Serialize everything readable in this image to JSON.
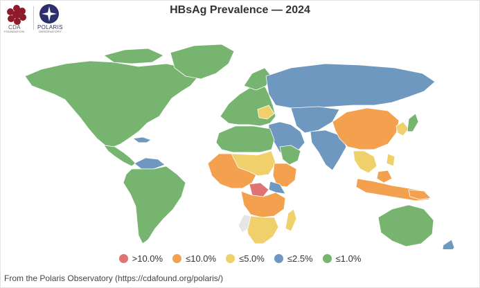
{
  "title": "HBsAg Prevalence — 2024",
  "logos": {
    "cda_text": "CDA",
    "cda_subtext": "FOUNDATION",
    "polaris_text": "POLARIS",
    "polaris_subtext": "OBSERVATORY"
  },
  "legend": [
    {
      "label": ">10.0%",
      "color": "#e07474"
    },
    {
      "label": "≤10.0%",
      "color": "#f3a04f"
    },
    {
      "label": "≤5.0%",
      "color": "#efd06a"
    },
    {
      "label": "≤2.5%",
      "color": "#6e98c0"
    },
    {
      "label": "≤1.0%",
      "color": "#76b470"
    }
  ],
  "colors": {
    "gt10": "#e07474",
    "le10": "#f3a04f",
    "le5": "#efd06a",
    "le25": "#6e98c0",
    "le1": "#76b470",
    "nodata": "#e6e6e6",
    "border": "#ffffff"
  },
  "credit": "From the Polaris Observatory (https://cdafound.org/polaris/)"
}
